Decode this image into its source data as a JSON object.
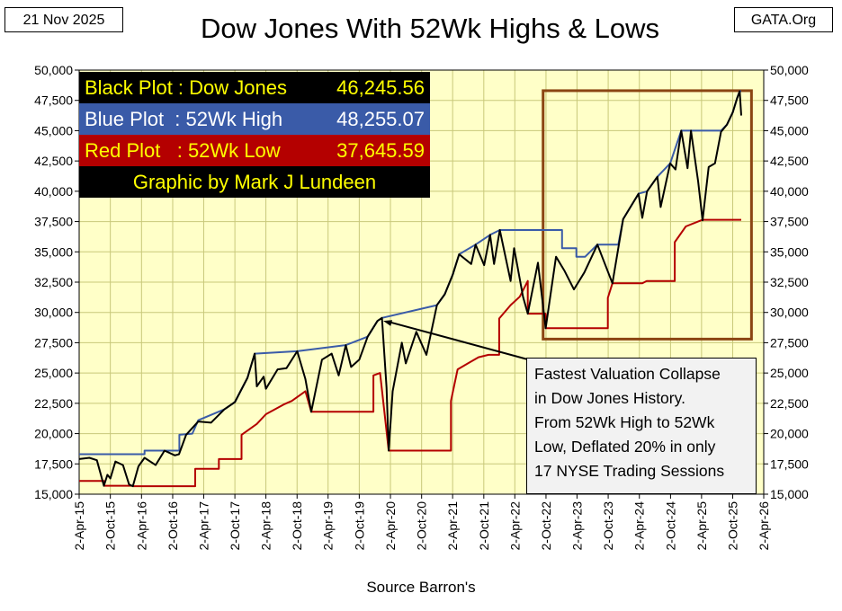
{
  "header": {
    "date": "21 Nov 2025",
    "title": "Dow Jones With 52Wk Highs & Lows",
    "source_label": "GATA.Org"
  },
  "legend": {
    "black_label": "Black Plot : Dow Jones",
    "black_value": "46,245.56",
    "blue_label": "Blue Plot  : 52Wk High",
    "blue_value": "48,255.07",
    "red_label": "Red Plot   : 52Wk Low",
    "red_value": "37,645.59",
    "credit": "Graphic by Mark J Lundeen"
  },
  "annotation": {
    "lines": [
      "Fastest Valuation Collapse",
      "in Dow Jones History.",
      "From 52Wk High to 52Wk",
      "Low, Deflated 20% in only",
      "17 NYSE Trading Sessions"
    ]
  },
  "colors": {
    "plot_background": "#ffffc8",
    "grid": "#c8c87a",
    "dow": "#000000",
    "high": "#3a5ba8",
    "low": "#b40000",
    "highlight_box": "#8b4513",
    "arrow": "#000000"
  },
  "chart_data": {
    "type": "line",
    "title": "Dow Jones With 52Wk Highs & Lows",
    "xlabel": "Source Barron's",
    "ylabel": "",
    "ylim": [
      15000,
      50000
    ],
    "y_ticks": [
      15000,
      17500,
      20000,
      22500,
      25000,
      27500,
      30000,
      32500,
      35000,
      37500,
      40000,
      42500,
      45000,
      47500,
      50000
    ],
    "y_tick_labels": [
      "15,000",
      "17,500",
      "20,000",
      "22,500",
      "25,000",
      "27,500",
      "30,000",
      "32,500",
      "35,000",
      "37,500",
      "40,000",
      "42,500",
      "45,000",
      "47,500",
      "50,000"
    ],
    "x_ticks": [
      "2015-04-02",
      "2015-10-02",
      "2016-04-02",
      "2016-10-02",
      "2017-04-02",
      "2017-10-02",
      "2018-04-02",
      "2018-10-02",
      "2019-04-02",
      "2019-10-02",
      "2020-04-02",
      "2020-10-02",
      "2021-04-02",
      "2021-10-02",
      "2022-04-02",
      "2022-10-02",
      "2023-04-02",
      "2023-10-02",
      "2024-04-02",
      "2024-10-02",
      "2025-04-02",
      "2025-10-02",
      "2026-04-02"
    ],
    "x_tick_labels": [
      "2-Apr-15",
      "2-Oct-15",
      "2-Apr-16",
      "2-Oct-16",
      "2-Apr-17",
      "2-Oct-17",
      "2-Apr-18",
      "2-Oct-18",
      "2-Apr-19",
      "2-Oct-19",
      "2-Apr-20",
      "2-Oct-20",
      "2-Apr-21",
      "2-Oct-21",
      "2-Apr-22",
      "2-Oct-22",
      "2-Apr-23",
      "2-Oct-23",
      "2-Apr-24",
      "2-Oct-24",
      "2-Apr-25",
      "2-Oct-25",
      "2-Apr-26"
    ],
    "grid": true,
    "secondary_y_axis": true,
    "series": [
      {
        "name": "Dow Jones",
        "color": "#000000",
        "points": [
          [
            "2015-04-02",
            17900
          ],
          [
            "2015-06-01",
            18000
          ],
          [
            "2015-07-15",
            17800
          ],
          [
            "2015-08-25",
            15700
          ],
          [
            "2015-09-15",
            16600
          ],
          [
            "2015-10-02",
            16300
          ],
          [
            "2015-11-01",
            17700
          ],
          [
            "2015-12-15",
            17400
          ],
          [
            "2016-01-20",
            15800
          ],
          [
            "2016-02-11",
            15660
          ],
          [
            "2016-03-15",
            17300
          ],
          [
            "2016-04-20",
            18000
          ],
          [
            "2016-06-24",
            17400
          ],
          [
            "2016-08-15",
            18600
          ],
          [
            "2016-10-15",
            18200
          ],
          [
            "2016-11-08",
            18300
          ],
          [
            "2016-12-20",
            19900
          ],
          [
            "2017-03-01",
            21000
          ],
          [
            "2017-05-15",
            20900
          ],
          [
            "2017-08-01",
            22000
          ],
          [
            "2017-10-02",
            22600
          ],
          [
            "2017-12-15",
            24600
          ],
          [
            "2018-01-26",
            26600
          ],
          [
            "2018-02-08",
            23900
          ],
          [
            "2018-03-20",
            24700
          ],
          [
            "2018-04-02",
            23700
          ],
          [
            "2018-06-10",
            25300
          ],
          [
            "2018-08-01",
            25400
          ],
          [
            "2018-10-03",
            26800
          ],
          [
            "2018-11-20",
            24500
          ],
          [
            "2018-12-24",
            21800
          ],
          [
            "2019-02-25",
            26100
          ],
          [
            "2019-04-23",
            26600
          ],
          [
            "2019-06-03",
            24800
          ],
          [
            "2019-07-15",
            27300
          ],
          [
            "2019-08-15",
            25500
          ],
          [
            "2019-10-02",
            26100
          ],
          [
            "2019-11-20",
            28000
          ],
          [
            "2020-01-17",
            29300
          ],
          [
            "2020-02-12",
            29550
          ],
          [
            "2020-03-10",
            23800
          ],
          [
            "2020-03-23",
            18600
          ],
          [
            "2020-04-15",
            23500
          ],
          [
            "2020-06-08",
            27500
          ],
          [
            "2020-07-01",
            25800
          ],
          [
            "2020-09-01",
            28400
          ],
          [
            "2020-10-30",
            26500
          ],
          [
            "2020-12-31",
            30600
          ],
          [
            "2021-02-15",
            31500
          ],
          [
            "2021-04-02",
            33100
          ],
          [
            "2021-05-10",
            34800
          ],
          [
            "2021-07-20",
            34000
          ],
          [
            "2021-08-15",
            35600
          ],
          [
            "2021-10-04",
            33900
          ],
          [
            "2021-11-08",
            36400
          ],
          [
            "2021-12-01",
            34000
          ],
          [
            "2022-01-04",
            36800
          ],
          [
            "2022-03-08",
            32600
          ],
          [
            "2022-03-29",
            35300
          ],
          [
            "2022-05-20",
            31300
          ],
          [
            "2022-06-17",
            29900
          ],
          [
            "2022-08-16",
            34100
          ],
          [
            "2022-09-30",
            28700
          ],
          [
            "2022-11-30",
            34600
          ],
          [
            "2023-01-20",
            33400
          ],
          [
            "2023-03-15",
            31900
          ],
          [
            "2023-05-15",
            33300
          ],
          [
            "2023-07-31",
            35600
          ],
          [
            "2023-10-27",
            32400
          ],
          [
            "2023-12-29",
            37700
          ],
          [
            "2024-03-28",
            39800
          ],
          [
            "2024-04-19",
            37800
          ],
          [
            "2024-05-17",
            40000
          ],
          [
            "2024-07-17",
            41200
          ],
          [
            "2024-08-05",
            38700
          ],
          [
            "2024-09-30",
            42300
          ],
          [
            "2024-10-31",
            41800
          ],
          [
            "2024-12-04",
            45000
          ],
          [
            "2025-01-10",
            41900
          ],
          [
            "2025-01-30",
            45000
          ],
          [
            "2025-03-13",
            40800
          ],
          [
            "2025-04-08",
            37600
          ],
          [
            "2025-05-14",
            42000
          ],
          [
            "2025-06-20",
            42300
          ],
          [
            "2025-07-25",
            44900
          ],
          [
            "2025-08-29",
            45500
          ],
          [
            "2025-10-02",
            46500
          ],
          [
            "2025-10-28",
            47700
          ],
          [
            "2025-11-12",
            48250
          ],
          [
            "2025-11-21",
            46245.56
          ]
        ]
      },
      {
        "name": "52Wk High",
        "color": "#3a5ba8",
        "points": [
          [
            "2015-04-02",
            18300
          ],
          [
            "2016-04-20",
            18300
          ],
          [
            "2016-04-20",
            18600
          ],
          [
            "2016-11-10",
            18600
          ],
          [
            "2016-11-10",
            19900
          ],
          [
            "2017-01-25",
            20000
          ],
          [
            "2017-03-01",
            21100
          ],
          [
            "2017-08-01",
            22000
          ],
          [
            "2017-10-02",
            22600
          ],
          [
            "2017-12-15",
            24600
          ],
          [
            "2018-01-26",
            26600
          ],
          [
            "2018-10-03",
            26800
          ],
          [
            "2019-07-15",
            27300
          ],
          [
            "2019-11-20",
            28000
          ],
          [
            "2020-01-17",
            29300
          ],
          [
            "2020-02-12",
            29550
          ],
          [
            "2020-12-31",
            30600
          ],
          [
            "2021-02-15",
            31500
          ],
          [
            "2021-04-02",
            33100
          ],
          [
            "2021-05-10",
            34800
          ],
          [
            "2021-08-15",
            35600
          ],
          [
            "2021-11-08",
            36400
          ],
          [
            "2022-01-04",
            36800
          ],
          [
            "2023-01-04",
            36800
          ],
          [
            "2023-01-04",
            35300
          ],
          [
            "2023-03-29",
            35300
          ],
          [
            "2023-03-29",
            34600
          ],
          [
            "2023-05-20",
            34600
          ],
          [
            "2023-07-31",
            35600
          ],
          [
            "2023-11-30",
            35600
          ],
          [
            "2023-12-29",
            37700
          ],
          [
            "2024-03-28",
            39800
          ],
          [
            "2024-05-17",
            40000
          ],
          [
            "2024-07-17",
            41200
          ],
          [
            "2024-09-30",
            42300
          ],
          [
            "2024-12-04",
            45000
          ],
          [
            "2025-07-25",
            45000
          ],
          [
            "2025-08-29",
            45500
          ],
          [
            "2025-10-02",
            46500
          ],
          [
            "2025-10-28",
            47700
          ],
          [
            "2025-11-12",
            48255.07
          ],
          [
            "2025-11-21",
            48255.07
          ]
        ]
      },
      {
        "name": "52Wk Low",
        "color": "#b40000",
        "points": [
          [
            "2015-04-02",
            16100
          ],
          [
            "2015-08-25",
            16100
          ],
          [
            "2015-08-25",
            15700
          ],
          [
            "2016-02-11",
            15700
          ],
          [
            "2016-02-11",
            15660
          ],
          [
            "2017-02-11",
            15660
          ],
          [
            "2017-02-11",
            17100
          ],
          [
            "2017-06-30",
            17100
          ],
          [
            "2017-06-30",
            17900
          ],
          [
            "2017-11-10",
            17900
          ],
          [
            "2017-11-10",
            19900
          ],
          [
            "2018-02-08",
            20800
          ],
          [
            "2018-04-02",
            21600
          ],
          [
            "2018-07-15",
            22400
          ],
          [
            "2018-09-01",
            22700
          ],
          [
            "2018-11-20",
            23500
          ],
          [
            "2018-12-24",
            21800
          ],
          [
            "2019-12-24",
            21800
          ],
          [
            "2019-12-24",
            24800
          ],
          [
            "2020-02-01",
            25000
          ],
          [
            "2020-03-23",
            18600
          ],
          [
            "2021-03-23",
            18600
          ],
          [
            "2021-03-23",
            22700
          ],
          [
            "2021-05-01",
            25300
          ],
          [
            "2021-07-01",
            25800
          ],
          [
            "2021-09-01",
            26300
          ],
          [
            "2021-10-30",
            26500
          ],
          [
            "2021-12-31",
            26500
          ],
          [
            "2021-12-31",
            29500
          ],
          [
            "2022-03-08",
            30600
          ],
          [
            "2022-05-01",
            31300
          ],
          [
            "2022-06-17",
            32600
          ],
          [
            "2022-06-17",
            29900
          ],
          [
            "2022-09-30",
            29900
          ],
          [
            "2022-09-30",
            28700
          ],
          [
            "2023-09-30",
            28700
          ],
          [
            "2023-09-30",
            31200
          ],
          [
            "2023-10-27",
            32400
          ],
          [
            "2024-04-19",
            32400
          ],
          [
            "2024-05-15",
            32600
          ],
          [
            "2024-10-27",
            32600
          ],
          [
            "2024-10-27",
            35800
          ],
          [
            "2024-12-31",
            37100
          ],
          [
            "2025-04-08",
            37645.59
          ],
          [
            "2025-11-21",
            37645.59
          ]
        ]
      }
    ],
    "highlight_box": {
      "x": [
        "2022-09-15",
        "2026-01-20"
      ],
      "y": [
        27800,
        48300
      ]
    },
    "annotation_arrow": {
      "from": [
        "2022-09-10",
        25800
      ],
      "to": [
        "2020-02-20",
        29300
      ]
    }
  },
  "footer": {
    "source": "Source Barron's"
  }
}
